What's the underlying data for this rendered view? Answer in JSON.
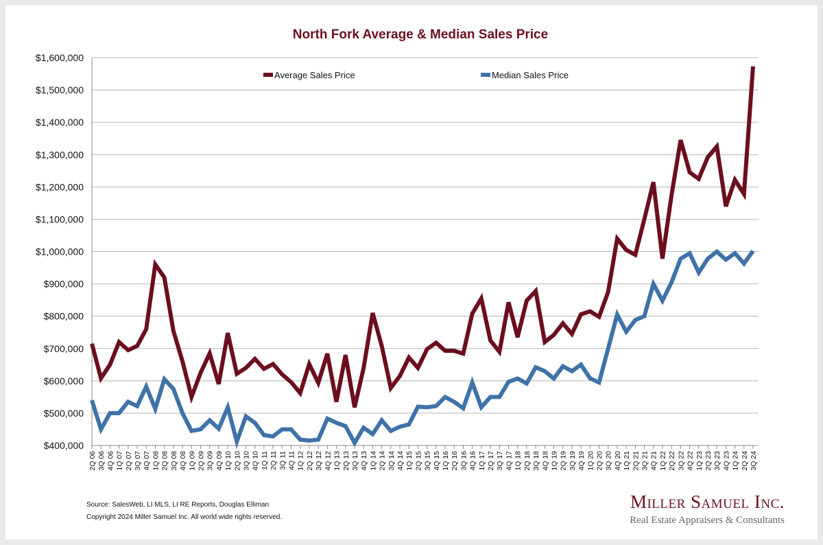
{
  "chart_data": {
    "type": "line",
    "title": "North Fork Average & Median Sales Price",
    "xlabel": "",
    "ylabel": "",
    "ylim": [
      400000,
      1600000
    ],
    "yticks": [
      "$400,000",
      "$500,000",
      "$600,000",
      "$700,000",
      "$800,000",
      "$900,000",
      "$1,000,000",
      "$1,100,000",
      "$1,200,000",
      "$1,300,000",
      "$1,400,000",
      "$1,500,000",
      "$1,600,000"
    ],
    "grid": true,
    "legend_position": "top",
    "categories": [
      "2Q 06",
      "3Q 06",
      "4Q 06",
      "1Q 07",
      "2Q 07",
      "3Q 07",
      "4Q 07",
      "1Q 08",
      "2Q 08",
      "3Q 08",
      "4Q 08",
      "1Q 09",
      "2Q 09",
      "3Q 09",
      "4Q 09",
      "1Q 10",
      "2Q 10",
      "3Q 10",
      "4Q 10",
      "1Q 11",
      "2Q 11",
      "3Q 11",
      "4Q 11",
      "1Q 12",
      "2Q 12",
      "3Q 12",
      "4Q 12",
      "1Q 13",
      "2Q 13",
      "3Q 13",
      "4Q 13",
      "1Q 14",
      "2Q 14",
      "3Q 14",
      "4Q 14",
      "1Q 15",
      "2Q 15",
      "3Q 15",
      "4Q 15",
      "1Q 16",
      "2Q 16",
      "3Q 16",
      "4Q 16",
      "1Q 17",
      "2Q 17",
      "3Q 17",
      "4Q 17",
      "1Q 18",
      "2Q 18",
      "3Q 18",
      "4Q 18",
      "1Q 19",
      "2Q 19",
      "3Q 19",
      "4Q 19",
      "1Q 20",
      "2Q 20",
      "3Q 20",
      "4Q 20",
      "1Q 21",
      "2Q 21",
      "3Q 21",
      "4Q 21",
      "1Q 22",
      "2Q 22",
      "3Q 22",
      "4Q 22",
      "1Q 23",
      "2Q 23",
      "3Q 23",
      "4Q 23",
      "1Q 24",
      "2Q 24",
      "3Q 24"
    ],
    "series": [
      {
        "name": "Average Sales Price",
        "color": "#6b0f1e",
        "values": [
          715000,
          608000,
          650000,
          720000,
          695000,
          708000,
          760000,
          960000,
          920000,
          755000,
          660000,
          550000,
          625000,
          685000,
          590000,
          748000,
          622000,
          640000,
          668000,
          637000,
          652000,
          620000,
          596000,
          562000,
          652000,
          594000,
          684000,
          535000,
          680000,
          518000,
          640000,
          810000,
          708000,
          578000,
          615000,
          672000,
          640000,
          698000,
          718000,
          693000,
          693000,
          684000,
          808000,
          855000,
          725000,
          690000,
          843000,
          735000,
          848000,
          878000,
          720000,
          742000,
          778000,
          745000,
          806000,
          815000,
          798000,
          875000,
          1040000,
          1005000,
          990000,
          1100000,
          1215000,
          978000,
          1175000,
          1345000,
          1245000,
          1225000,
          1292000,
          1325000,
          1140000,
          1222000,
          1178000,
          1573000
        ]
      },
      {
        "name": "Median Sales Price",
        "color": "#3f72a8",
        "values": [
          540000,
          450000,
          500000,
          500000,
          535000,
          522000,
          582000,
          513000,
          605000,
          575000,
          500000,
          445000,
          450000,
          478000,
          452000,
          518000,
          412000,
          490000,
          470000,
          432000,
          428000,
          450000,
          450000,
          418000,
          415000,
          418000,
          483000,
          470000,
          460000,
          408000,
          455000,
          435000,
          478000,
          445000,
          458000,
          465000,
          520000,
          518000,
          522000,
          550000,
          535000,
          515000,
          595000,
          518000,
          550000,
          550000,
          597000,
          607000,
          592000,
          642000,
          630000,
          607000,
          645000,
          630000,
          650000,
          608000,
          595000,
          700000,
          805000,
          752000,
          788000,
          800000,
          900000,
          848000,
          905000,
          978000,
          995000,
          935000,
          978000,
          1000000,
          975000,
          995000,
          963000,
          1002000
        ]
      }
    ]
  },
  "footer": {
    "source": "Source: SalesWeb, LI MLS, LI RE Reports, Douglas Elliman",
    "copyright": "Copyright 2024 Miller Samuel Inc.  All world wide rights reserved."
  },
  "logo": {
    "name": "Miller Samuel Inc.",
    "tagline": "Real Estate Appraisers & Consultants"
  }
}
